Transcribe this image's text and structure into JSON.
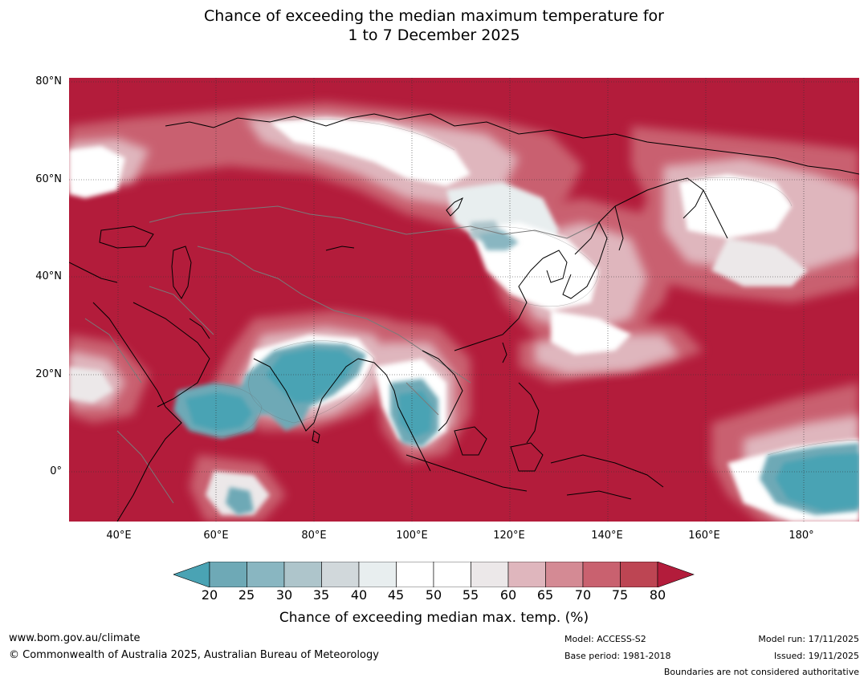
{
  "title": {
    "line1": "Chance of exceeding the median maximum temperature for",
    "line2": "1 to 7 December 2025"
  },
  "map": {
    "latitude_labels": [
      "80°N",
      "60°N",
      "40°N",
      "20°N",
      "0°"
    ],
    "longitude_labels": [
      "40°E",
      "60°E",
      "80°E",
      "100°E",
      "120°E",
      "140°E",
      "160°E",
      "180°"
    ],
    "extent": {
      "lon_min": 30,
      "lon_max": 191,
      "lat_min": -10,
      "lat_max": 81
    },
    "dominant_category": "80",
    "colors": {
      "ocean_high": "#b31c3b",
      "land_high": "#b31c3b",
      "coast": "#000000",
      "borders": "#7a7a7a",
      "gridlines": "#333333"
    }
  },
  "colorbar": {
    "ticks": [
      "20",
      "25",
      "30",
      "35",
      "40",
      "45",
      "50",
      "55",
      "60",
      "65",
      "70",
      "75",
      "80"
    ],
    "colors": [
      "#4aa3b4",
      "#6ea9b6",
      "#89b6c1",
      "#aec5cb",
      "#d1d8db",
      "#e8eeef",
      "#ffffff",
      "#ffffff",
      "#ece8e9",
      "#dfb6bd",
      "#d48a94",
      "#c9616f",
      "#bd4553",
      "#b31c3b"
    ],
    "label": "Chance of exceeding median max. temp. (%)"
  },
  "footer": {
    "website": "www.bom.gov.au/climate",
    "copyright": "© Commonwealth of Australia 2025, Australian Bureau of Meteorology",
    "model": "Model: ACCESS-S2",
    "base_period": "Base period: 1981-2018",
    "model_run": "Model run: 17/11/2025",
    "issued": "Issued: 19/11/2025",
    "disclaimer": "Boundaries are not considered authoritative"
  }
}
